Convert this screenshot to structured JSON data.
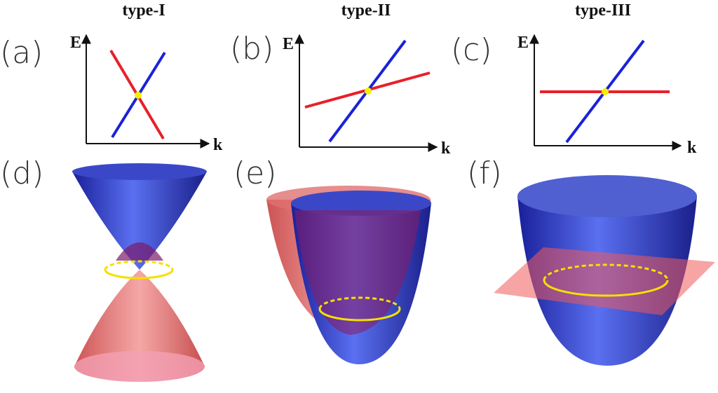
{
  "panels": [
    {
      "label": "(a)",
      "title": "type-I",
      "y_axis": "E",
      "x_axis": "k"
    },
    {
      "label": "(b)",
      "title": "type-II",
      "y_axis": "E",
      "x_axis": "k"
    },
    {
      "label": "(c)",
      "title": "type-III",
      "y_axis": "E",
      "x_axis": "k"
    },
    {
      "label": "(d)"
    },
    {
      "label": "(e)"
    },
    {
      "label": "(f)"
    }
  ]
}
